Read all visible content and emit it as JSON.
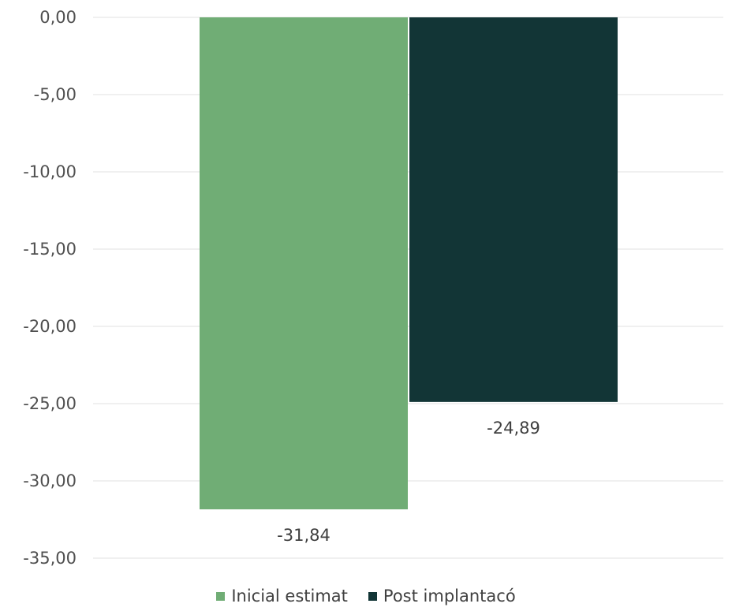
{
  "chart_data": {
    "type": "bar",
    "categories": [
      ""
    ],
    "series": [
      {
        "name": "Inicial estimat",
        "values": [
          -31.84
        ],
        "value_label": "-31,84",
        "color": "#70AD75"
      },
      {
        "name": "Post implantacó",
        "values": [
          -24.89
        ],
        "value_label": "-24,89",
        "color": "#123536"
      }
    ],
    "ylim": [
      -35,
      0
    ],
    "yticks": [
      0,
      -5,
      -10,
      -15,
      -20,
      -25,
      -30,
      -35
    ],
    "ytick_labels": [
      "0,00",
      "-5,00",
      "-10,00",
      "-15,00",
      "-20,00",
      "-25,00",
      "-30,00",
      "-35,00"
    ],
    "grid": true,
    "gridline_color": "#E0E0E0",
    "legend_position": "bottom",
    "title": "",
    "xlabel": "",
    "ylabel": ""
  }
}
